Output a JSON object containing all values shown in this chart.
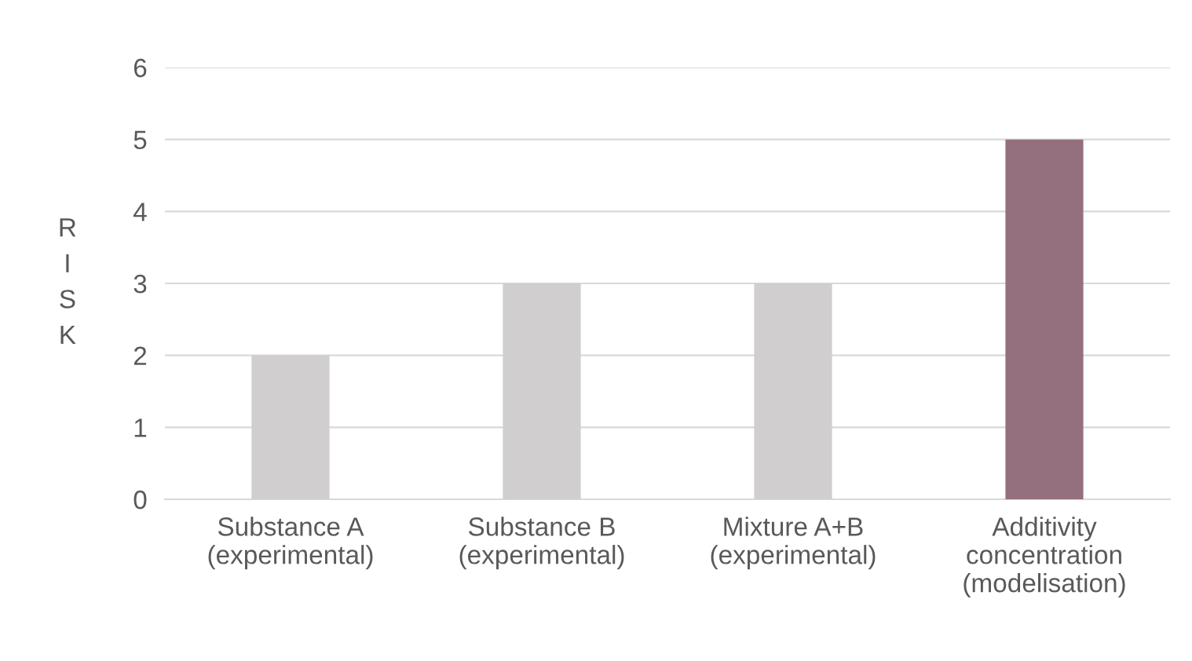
{
  "chart_data": {
    "type": "bar",
    "categories": [
      "Substance A\n(experimental)",
      "Substance B\n(experimental)",
      "Mixture A+B\n(experimental)",
      "Additivity\nconcentration\n(modelisation)"
    ],
    "values": [
      2,
      3,
      3,
      5
    ],
    "colors": [
      "#d0cecf",
      "#d0cecf",
      "#d0cecf",
      "#94707f"
    ],
    "ylabel": "R\nI\nS\nK",
    "ylim": [
      0,
      6
    ],
    "yticks": [
      0,
      1,
      2,
      3,
      4,
      5,
      6
    ],
    "grid": "y"
  }
}
